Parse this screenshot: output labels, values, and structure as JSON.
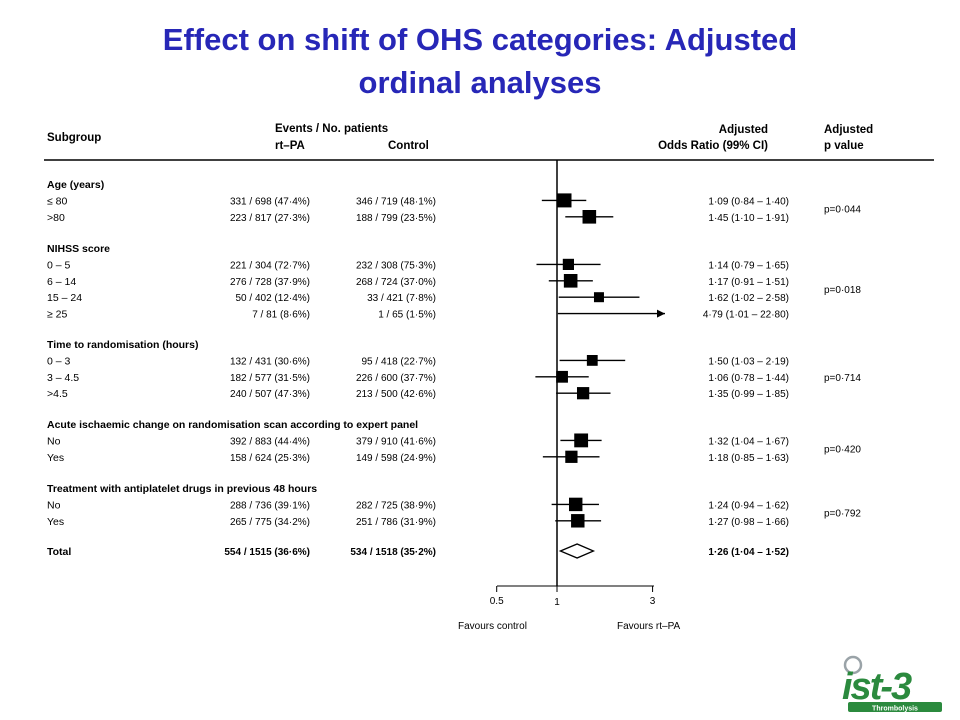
{
  "title": {
    "line1": "Effect on shift of OHS categories: Adjusted",
    "line2": "ordinal analyses",
    "color": "#2727b7"
  },
  "table_header": {
    "subgroup": "Subgroup",
    "events_title": "Events / No. patients",
    "col_rtpa": "rt–PA",
    "col_control": "Control",
    "or_title_1": "Adjusted",
    "or_title_2": "Odds Ratio (99% CI)",
    "p_title_1": "Adjusted",
    "p_title_2": "p value"
  },
  "axis": {
    "ticks": [
      "0.5",
      "1",
      "3"
    ],
    "favours_left": "Favours control",
    "favours_right": "Favours rt–PA"
  },
  "logo": {
    "text": "ist-3",
    "subtext": "Thrombolysis",
    "color": "#2b8a3e"
  },
  "chart_data": {
    "type": "forest",
    "x_scale": "log",
    "xlim": [
      0.5,
      3
    ],
    "reference_line": 1,
    "groups": [
      {
        "title": "Age (years)",
        "p_value": "p=0·044",
        "rows": [
          {
            "label": "≤ 80",
            "rtpa": "331 / 698  (47·4%)",
            "control": "346 / 719  (48·1%)",
            "ci_text": "1·09 (0·84 – 1·40)",
            "or": 1.09,
            "lo": 0.84,
            "hi": 1.4,
            "size": 1.0
          },
          {
            "label": ">80",
            "rtpa": "223 / 817  (27·3%)",
            "control": "188 / 799  (23·5%)",
            "ci_text": "1·45 (1·10 – 1·91)",
            "or": 1.45,
            "lo": 1.1,
            "hi": 1.91,
            "size": 0.95
          }
        ]
      },
      {
        "title": "NIHSS score",
        "p_value": "p=0·018",
        "rows": [
          {
            "label": "0 – 5",
            "rtpa": "221 / 304  (72·7%)",
            "control": "232 / 308  (75·3%)",
            "ci_text": "1·14 (0·79 – 1·65)",
            "or": 1.14,
            "lo": 0.79,
            "hi": 1.65,
            "size": 0.65
          },
          {
            "label": "6 – 14",
            "rtpa": "276 / 728  (37·9%)",
            "control": "268 / 724  (37·0%)",
            "ci_text": "1·17 (0·91 – 1·51)",
            "or": 1.17,
            "lo": 0.91,
            "hi": 1.51,
            "size": 0.95
          },
          {
            "label": "15 – 24",
            "rtpa": "50 / 402  (12·4%)",
            "control": "33 / 421  (7·8%)",
            "ci_text": "1·62 (1·02 – 2·58)",
            "or": 1.62,
            "lo": 1.02,
            "hi": 2.58,
            "size": 0.5
          },
          {
            "label": "≥ 25",
            "rtpa": "7 / 81  (8·6%)",
            "control": "1 / 65  (1·5%)",
            "ci_text": "4·79 (1·01 – 22·80)",
            "or": 4.79,
            "lo": 1.01,
            "hi": 22.8,
            "size": 0,
            "arrow": true
          }
        ]
      },
      {
        "title": "Time to randomisation (hours)",
        "p_value": "p=0·714",
        "rows": [
          {
            "label": "0 – 3",
            "rtpa": "132 / 431  (30·6%)",
            "control": "95 / 418  (22·7%)",
            "ci_text": "1·50 (1·03 – 2·19)",
            "or": 1.5,
            "lo": 1.03,
            "hi": 2.19,
            "size": 0.6
          },
          {
            "label": "3 – 4.5",
            "rtpa": "182 / 577  (31·5%)",
            "control": "226 / 600  (37·7%)",
            "ci_text": "1·06 (0·78 – 1·44)",
            "or": 1.06,
            "lo": 0.78,
            "hi": 1.44,
            "size": 0.72
          },
          {
            "label": ">4.5",
            "rtpa": "240 / 507  (47·3%)",
            "control": "213 / 500  (42·6%)",
            "ci_text": "1·35 (0·99 – 1·85)",
            "or": 1.35,
            "lo": 0.99,
            "hi": 1.85,
            "size": 0.78
          }
        ]
      },
      {
        "title": "Acute ischaemic change on randomisation scan according to expert panel",
        "p_value": "p=0·420",
        "rows": [
          {
            "label": "No",
            "rtpa": "392 / 883  (44·4%)",
            "control": "379 / 910  (41·6%)",
            "ci_text": "1·32 (1·04 – 1·67)",
            "or": 1.32,
            "lo": 1.04,
            "hi": 1.67,
            "size": 0.98
          },
          {
            "label": "Yes",
            "rtpa": "158 / 624  (25·3%)",
            "control": "149 / 598  (24·9%)",
            "ci_text": "1·18 (0·85 – 1·63)",
            "or": 1.18,
            "lo": 0.85,
            "hi": 1.63,
            "size": 0.78
          }
        ]
      },
      {
        "title": "Treatment with antiplatelet drugs in previous 48 hours",
        "p_value": "p=0·792",
        "rows": [
          {
            "label": "No",
            "rtpa": "288 / 736  (39·1%)",
            "control": "282 / 725  (38·9%)",
            "ci_text": "1·24 (0·94 – 1·62)",
            "or": 1.24,
            "lo": 0.94,
            "hi": 1.62,
            "size": 0.93
          },
          {
            "label": "Yes",
            "rtpa": "265 / 775  (34·2%)",
            "control": "251 / 786  (31·9%)",
            "ci_text": "1·27 (0·98 – 1·66)",
            "or": 1.27,
            "lo": 0.98,
            "hi": 1.66,
            "size": 0.93
          }
        ]
      }
    ],
    "total": {
      "label": "Total",
      "rtpa": "554 / 1515 (36·6%)",
      "control": "534 / 1518 (35·2%)",
      "ci_text": "1·26 (1·04 – 1·52)",
      "or": 1.26,
      "lo": 1.04,
      "hi": 1.52
    }
  }
}
